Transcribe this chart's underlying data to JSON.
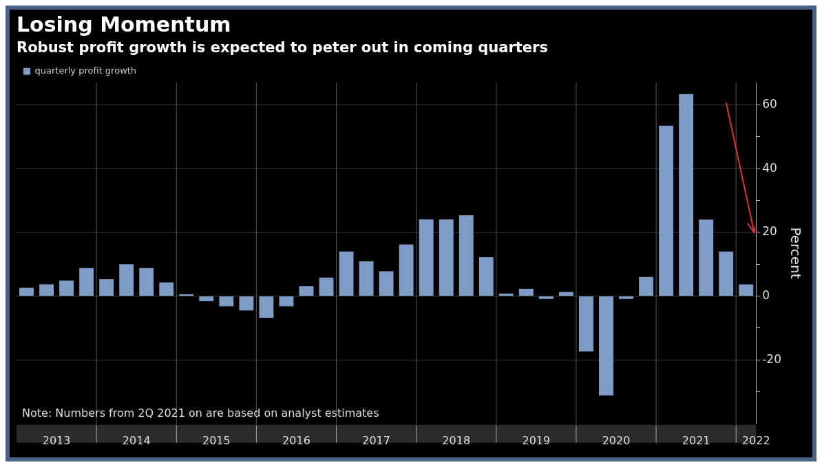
{
  "chart_data": {
    "type": "bar",
    "title": "Losing Momentum",
    "subtitle": "Robust profit growth is expected to peter out in coming quarters",
    "ylabel": "Percent",
    "categories": [
      null,
      "2013",
      null,
      null,
      null,
      "2014",
      null,
      null,
      null,
      "2015",
      null,
      null,
      null,
      "2016",
      null,
      null,
      null,
      "2017",
      null,
      null,
      null,
      "2018",
      null,
      null,
      null,
      "2019",
      null,
      null,
      null,
      "2020",
      null,
      null,
      null,
      "2021",
      null,
      null,
      "2022"
    ],
    "series": [
      {
        "name": "quarterly profit growth",
        "color": "#7f9cc7",
        "values": [
          2.6,
          3.7,
          4.9,
          8.8,
          5.3,
          10,
          8.8,
          4.3,
          0.6,
          -1.6,
          -3.2,
          -4.5,
          -6.8,
          -3.2,
          3.1,
          5.8,
          14,
          10.9,
          7.8,
          16.2,
          24.1,
          24.1,
          25.4,
          12.2,
          0.8,
          2.3,
          -0.9,
          1.3,
          -17.4,
          -31.2,
          -0.9,
          6,
          53.5,
          63.4,
          24,
          14,
          3.7
        ]
      }
    ],
    "ylim": [
      -40,
      67
    ],
    "yticks": [
      {
        "value": -30,
        "label": null
      },
      -20,
      {
        "value": -10,
        "label": null
      },
      0,
      {
        "value": 10,
        "label": null
      },
      20,
      {
        "value": 30,
        "label": null
      },
      40,
      {
        "value": 50,
        "label": null
      },
      60
    ],
    "grid": true,
    "legend": "top left",
    "annotations": [
      "Note: Numbers from 2Q 2021 on are based on analyst estimates"
    ]
  }
}
